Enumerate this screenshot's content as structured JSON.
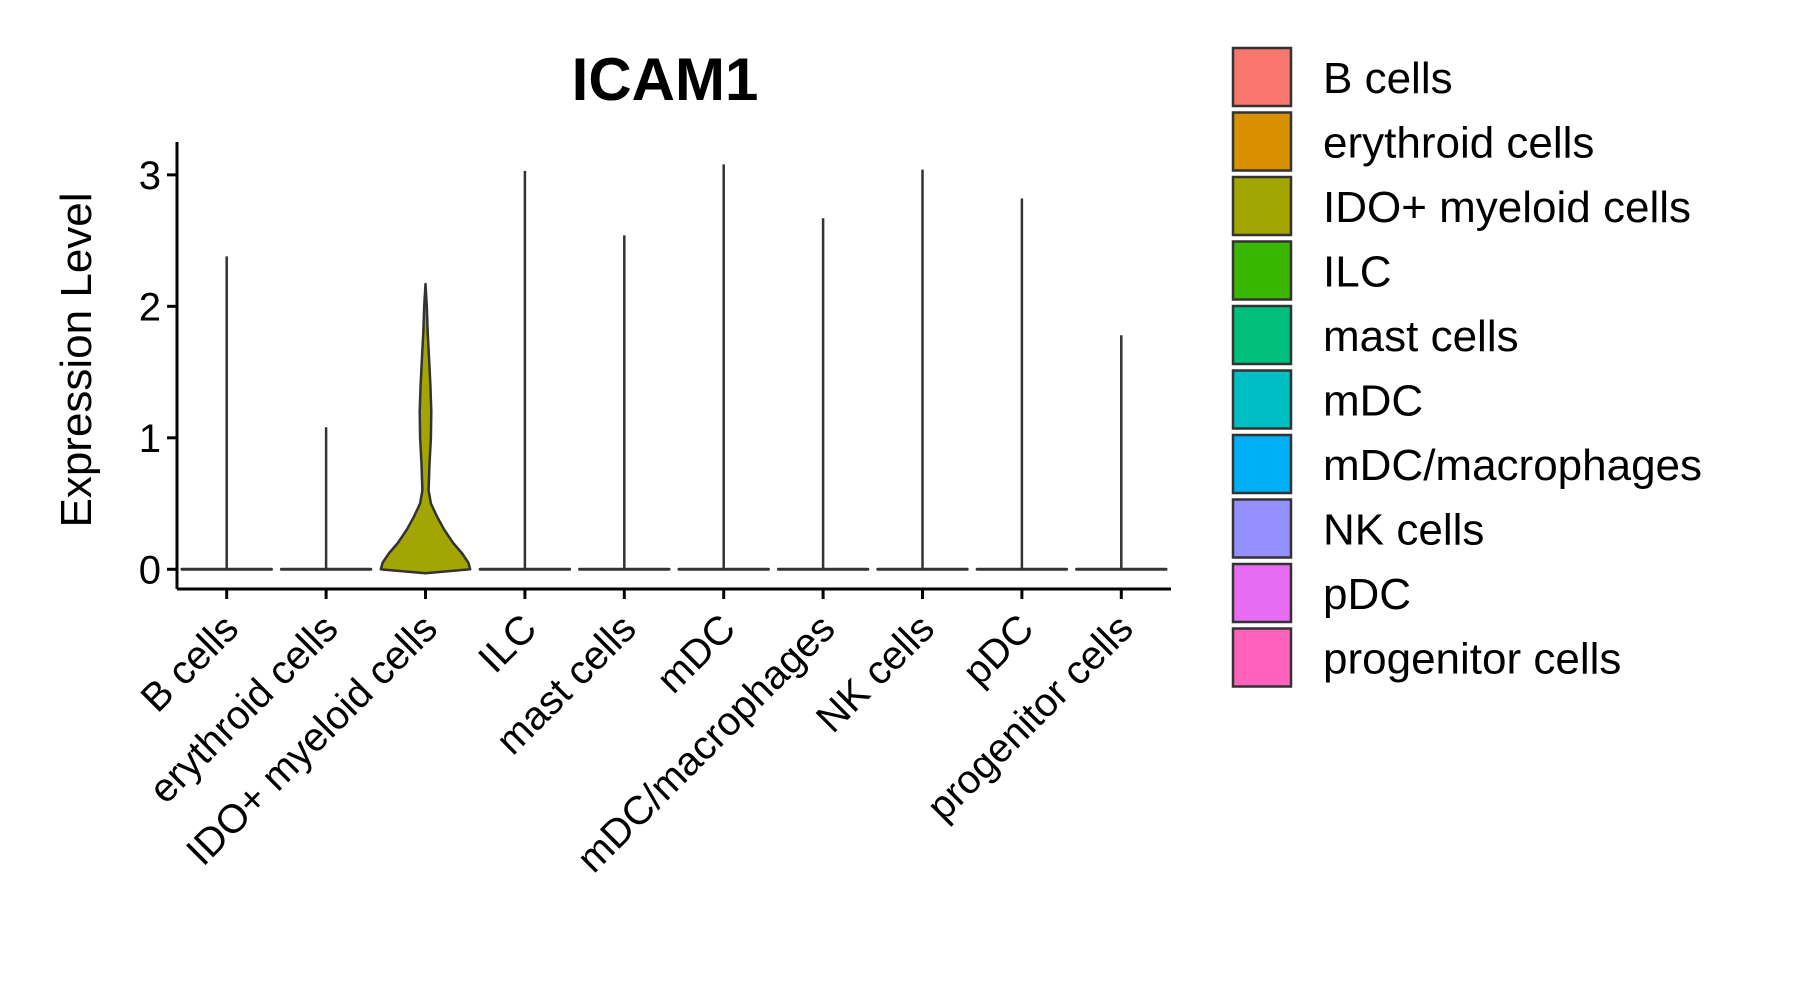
{
  "chart_data": {
    "type": "violin",
    "title": "ICAM1",
    "xlabel": "",
    "ylabel": "Expression Level",
    "ylim": [
      -0.15,
      3.25
    ],
    "yticks": [
      0,
      1,
      2,
      3
    ],
    "categories": [
      "B cells",
      "erythroid cells",
      "IDO+ myeloid cells",
      "ILC",
      "mast cells",
      "mDC",
      "mDC/macrophages",
      "NK cells",
      "pDC",
      "progenitor cells"
    ],
    "max_values": [
      2.38,
      1.08,
      2.17,
      3.03,
      2.54,
      3.08,
      2.67,
      3.04,
      2.82,
      1.78
    ],
    "colors": [
      "#F8766D",
      "#D89000",
      "#A3A500",
      "#39B600",
      "#00BF7D",
      "#00BFC4",
      "#00B0F6",
      "#9590FF",
      "#E76BF3",
      "#FF62BC"
    ],
    "density_profile_ido_myeloid": [
      [
        0.0,
        1.0
      ],
      [
        0.05,
        0.96
      ],
      [
        0.12,
        0.82
      ],
      [
        0.2,
        0.62
      ],
      [
        0.3,
        0.42
      ],
      [
        0.4,
        0.26
      ],
      [
        0.5,
        0.12
      ],
      [
        0.6,
        0.07
      ],
      [
        0.8,
        0.09
      ],
      [
        1.0,
        0.12
      ],
      [
        1.2,
        0.13
      ],
      [
        1.4,
        0.11
      ],
      [
        1.6,
        0.08
      ],
      [
        1.8,
        0.05
      ],
      [
        2.0,
        0.03
      ],
      [
        2.17,
        0.0
      ]
    ],
    "legend": {
      "title": "",
      "entries": [
        "B cells",
        "erythroid cells",
        "IDO+ myeloid cells",
        "ILC",
        "mast cells",
        "mDC",
        "mDC/macrophages",
        "NK cells",
        "pDC",
        "progenitor cells"
      ]
    }
  }
}
